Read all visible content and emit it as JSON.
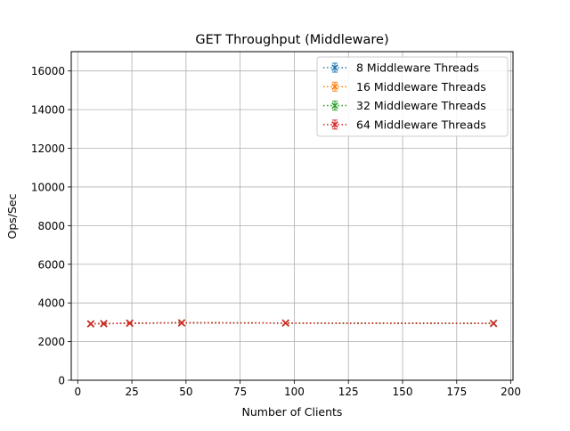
{
  "chart_data": {
    "type": "line",
    "title": "GET Throughput (Middleware)",
    "xlabel": "Number of Clients",
    "ylabel": "Ops/Sec",
    "xlim": [
      -3,
      201
    ],
    "ylim": [
      0,
      17000
    ],
    "xticks": [
      0,
      25,
      50,
      75,
      100,
      125,
      150,
      175,
      200
    ],
    "yticks": [
      0,
      2000,
      4000,
      6000,
      8000,
      10000,
      12000,
      14000,
      16000
    ],
    "grid": true,
    "legend_position": "top-right",
    "x": [
      6,
      12,
      24,
      48,
      96,
      192
    ],
    "series": [
      {
        "name": "8 Middleware Threads",
        "color": "#1f77b4",
        "values": [
          2920,
          2930,
          2950,
          2970,
          2960,
          2940
        ]
      },
      {
        "name": "16 Middleware Threads",
        "color": "#ff7f0e",
        "values": [
          2920,
          2930,
          2950,
          2970,
          2960,
          2940
        ]
      },
      {
        "name": "32 Middleware Threads",
        "color": "#2ca02c",
        "values": [
          2920,
          2930,
          2950,
          2970,
          2960,
          2940
        ]
      },
      {
        "name": "64 Middleware Threads",
        "color": "#d62728",
        "values": [
          2920,
          2930,
          2950,
          2970,
          2960,
          2940
        ]
      }
    ]
  }
}
